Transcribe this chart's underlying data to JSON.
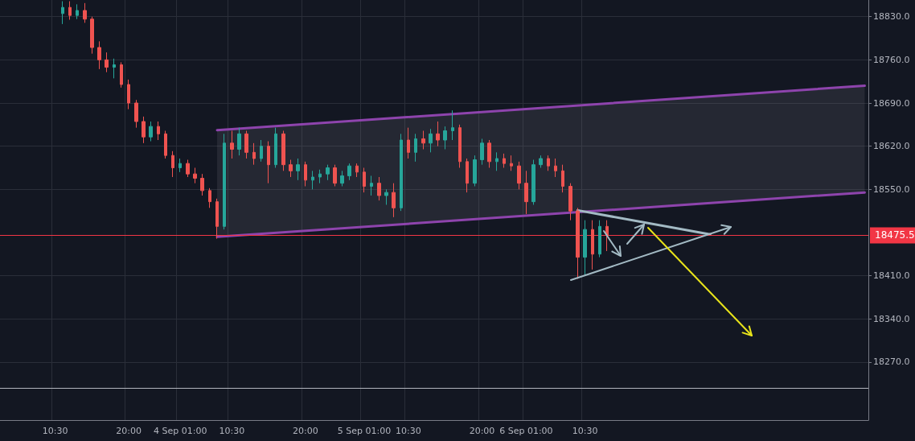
{
  "chart_data": {
    "type": "candlestick",
    "categories": [
      null,
      null,
      null,
      null,
      null,
      null,
      null,
      "10:30",
      null,
      null,
      null,
      null,
      null,
      null,
      null,
      null,
      null,
      "20:00",
      null,
      null,
      null,
      null,
      null,
      null,
      "4 Sep 01:00",
      null,
      null,
      null,
      null,
      null,
      null,
      "10:30",
      null,
      null,
      null,
      null,
      null,
      null,
      null,
      null,
      null,
      "20:00",
      null,
      null,
      null,
      null,
      null,
      null,
      null,
      "5 Sep 01:00",
      null,
      null,
      null,
      null,
      null,
      "10:30",
      null,
      null,
      null,
      null,
      null,
      null,
      null,
      null,
      null,
      "20:00",
      null,
      null,
      null,
      null,
      null,
      "6 Sep 01:00",
      null,
      null,
      null,
      null,
      null,
      null,
      null,
      "10:30",
      null,
      null,
      null,
      null,
      null,
      null,
      null,
      null,
      null,
      null,
      null,
      null,
      null,
      null,
      null,
      null,
      null,
      null,
      null,
      null,
      null,
      null,
      null,
      null,
      null,
      null,
      null,
      null,
      null,
      null,
      null,
      null,
      null,
      null,
      null,
      null,
      null,
      null
    ],
    "ohlc": [
      null,
      null,
      null,
      null,
      null,
      null,
      null,
      null,
      [
        18835,
        18855,
        18818,
        18845
      ],
      [
        18845,
        18855,
        18825,
        18832
      ],
      [
        18832,
        18850,
        18826,
        18840
      ],
      [
        18840,
        18852,
        18820,
        18826
      ],
      [
        18826,
        18830,
        18770,
        18780
      ],
      [
        18780,
        18790,
        18745,
        18760
      ],
      [
        18760,
        18772,
        18740,
        18748
      ],
      [
        18748,
        18762,
        18730,
        18752
      ],
      [
        18752,
        18756,
        18715,
        18720
      ],
      [
        18720,
        18728,
        18680,
        18690
      ],
      [
        18690,
        18695,
        18650,
        18660
      ],
      [
        18660,
        18668,
        18625,
        18635
      ],
      [
        18635,
        18660,
        18628,
        18652
      ],
      [
        18652,
        18660,
        18630,
        18640
      ],
      [
        18640,
        18645,
        18600,
        18605
      ],
      [
        18605,
        18612,
        18570,
        18585
      ],
      [
        18585,
        18600,
        18578,
        18592
      ],
      [
        18592,
        18598,
        18570,
        18575
      ],
      [
        18575,
        18585,
        18560,
        18568
      ],
      [
        18568,
        18575,
        18540,
        18548
      ],
      [
        18548,
        18552,
        18520,
        18530
      ],
      [
        18530,
        18535,
        18470,
        18490
      ],
      [
        18490,
        18640,
        18485,
        18625
      ],
      [
        18625,
        18645,
        18600,
        18615
      ],
      [
        18615,
        18650,
        18605,
        18640
      ],
      [
        18640,
        18645,
        18600,
        18610
      ],
      [
        18610,
        18625,
        18590,
        18600
      ],
      [
        18600,
        18630,
        18595,
        18620
      ],
      [
        18620,
        18628,
        18560,
        18590
      ],
      [
        18590,
        18650,
        18585,
        18640
      ],
      [
        18640,
        18645,
        18580,
        18590
      ],
      [
        18590,
        18598,
        18570,
        18580
      ],
      [
        18580,
        18600,
        18565,
        18590
      ],
      [
        18590,
        18595,
        18555,
        18565
      ],
      [
        18565,
        18580,
        18550,
        18570
      ],
      [
        18570,
        18582,
        18560,
        18575
      ],
      [
        18575,
        18590,
        18565,
        18585
      ],
      [
        18585,
        18590,
        18555,
        18560
      ],
      [
        18560,
        18580,
        18555,
        18572
      ],
      [
        18572,
        18592,
        18565,
        18588
      ],
      [
        18588,
        18592,
        18570,
        18578
      ],
      [
        18578,
        18585,
        18545,
        18555
      ],
      [
        18555,
        18572,
        18540,
        18560
      ],
      [
        18560,
        18570,
        18532,
        18540
      ],
      [
        18540,
        18550,
        18525,
        18545
      ],
      [
        18545,
        18560,
        18505,
        18520
      ],
      [
        18520,
        18640,
        18515,
        18630
      ],
      [
        18630,
        18650,
        18600,
        18610
      ],
      [
        18610,
        18640,
        18595,
        18632
      ],
      [
        18632,
        18645,
        18615,
        18625
      ],
      [
        18625,
        18648,
        18610,
        18640
      ],
      [
        18640,
        18660,
        18620,
        18630
      ],
      [
        18630,
        18652,
        18615,
        18645
      ],
      [
        18645,
        18678,
        18630,
        18650
      ],
      [
        18650,
        18655,
        18585,
        18595
      ],
      [
        18595,
        18600,
        18545,
        18560
      ],
      [
        18560,
        18605,
        18555,
        18598
      ],
      [
        18598,
        18632,
        18590,
        18625
      ],
      [
        18625,
        18630,
        18585,
        18595
      ],
      [
        18595,
        18610,
        18580,
        18600
      ],
      [
        18600,
        18608,
        18585,
        18592
      ],
      [
        18592,
        18605,
        18580,
        18588
      ],
      [
        18588,
        18595,
        18550,
        18560
      ],
      [
        18560,
        18580,
        18510,
        18530
      ],
      [
        18530,
        18598,
        18525,
        18590
      ],
      [
        18590,
        18605,
        18585,
        18600
      ],
      [
        18600,
        18605,
        18580,
        18588
      ],
      [
        18588,
        18600,
        18570,
        18580
      ],
      [
        18580,
        18590,
        18545,
        18555
      ],
      [
        18555,
        18560,
        18500,
        18515
      ],
      [
        18515,
        18520,
        18405,
        18440
      ],
      [
        18440,
        18500,
        18410,
        18485
      ],
      [
        18485,
        18500,
        18420,
        18445
      ],
      [
        18445,
        18500,
        18440,
        18490
      ],
      [
        18490,
        18500,
        18450,
        18475.5
      ],
      null,
      null,
      null,
      null,
      null,
      null,
      null,
      null,
      null,
      null,
      null,
      null,
      null,
      null,
      null,
      null,
      null,
      null,
      null,
      null,
      null,
      null,
      null,
      null,
      null,
      null,
      null,
      null,
      null,
      null,
      null,
      null,
      null,
      null,
      null
    ],
    "colors": [
      null,
      null,
      null,
      null,
      null,
      null,
      null,
      null,
      "#26a69a",
      "#ef5350",
      "#26a69a",
      "#ef5350",
      "#ef5350",
      "#ef5350",
      "#ef5350",
      "#26a69a",
      "#ef5350",
      "#ef5350",
      "#ef5350",
      "#ef5350",
      "#26a69a",
      "#ef5350",
      "#ef5350",
      "#ef5350",
      "#26a69a",
      "#ef5350",
      "#ef5350",
      "#ef5350",
      "#ef5350",
      "#ef5350",
      "#26a69a",
      "#ef5350",
      "#26a69a",
      "#ef5350",
      "#ef5350",
      "#26a69a",
      "#ef5350",
      "#26a69a",
      "#ef5350",
      "#ef5350",
      "#26a69a",
      "#ef5350",
      "#26a69a",
      "#26a69a",
      "#26a69a",
      "#ef5350",
      "#26a69a",
      "#26a69a",
      "#ef5350",
      "#ef5350",
      "#26a69a",
      "#ef5350",
      "#26a69a",
      "#ef5350",
      "#26a69a",
      "#ef5350",
      "#26a69a",
      "#ef5350",
      "#26a69a",
      "#ef5350",
      "#26a69a",
      "#26a69a",
      "#ef5350",
      "#ef5350",
      "#26a69a",
      "#26a69a",
      "#ef5350",
      "#26a69a",
      "#ef5350",
      "#ef5350",
      "#ef5350",
      "#ef5350",
      "#26a69a",
      "#26a69a",
      "#ef5350",
      "#ef5350",
      "#ef5350",
      "#ef5350",
      "#ef5350",
      "#26a69a",
      "#ef5350",
      "#26a69a",
      "#ef5350",
      null,
      null,
      null,
      null,
      null,
      null,
      null,
      null,
      null,
      null,
      null,
      null,
      null,
      null,
      null,
      null,
      null,
      null,
      null,
      null,
      null,
      null,
      null,
      null,
      null,
      null,
      null,
      null,
      null,
      null,
      null,
      null,
      null,
      null,
      null
    ],
    "series": [
      {
        "type": "line",
        "color": "#8e44ad",
        "values": [
          null,
          null,
          null,
          null,
          null,
          null,
          null,
          null,
          null,
          null,
          null,
          null,
          null,
          null,
          null,
          null,
          null,
          null,
          null,
          null,
          null,
          null,
          null,
          null,
          null,
          null,
          null,
          null,
          null,
          18646,
          null,
          null,
          null,
          null,
          null,
          null,
          null,
          null,
          null,
          null,
          null,
          null,
          null,
          null,
          null,
          null,
          null,
          null,
          null,
          null,
          null,
          null,
          null,
          null,
          null,
          null,
          null,
          null,
          null,
          null,
          null,
          null,
          null,
          null,
          null,
          null,
          null,
          null,
          null,
          null,
          null,
          null,
          null,
          null,
          null,
          null,
          null,
          null,
          null,
          null,
          null,
          null,
          null,
          null,
          null,
          null,
          null,
          null,
          null,
          null,
          null,
          null,
          null,
          null,
          null,
          null,
          null,
          null,
          null,
          null,
          null,
          null,
          null,
          null,
          null,
          null,
          null,
          null,
          null,
          null,
          null,
          null,
          null,
          null,
          null,
          null,
          null,
          18718
        ],
        "lower": [
          null,
          null,
          null,
          null,
          null,
          null,
          null,
          null,
          null,
          null,
          null,
          null,
          null,
          null,
          null,
          null,
          null,
          null,
          null,
          null,
          null,
          null,
          null,
          null,
          null,
          null,
          null,
          null,
          null,
          18473,
          null,
          null,
          null,
          null,
          null,
          null,
          null,
          null,
          null,
          null,
          null,
          null,
          null,
          null,
          null,
          null,
          null,
          null,
          null,
          null,
          null,
          null,
          null,
          null,
          null,
          null,
          null,
          null,
          null,
          null,
          null,
          null,
          null,
          null,
          null,
          null,
          null,
          null,
          null,
          null,
          null,
          null,
          null,
          null,
          null,
          null,
          null,
          null,
          null,
          null,
          null,
          null,
          null,
          null,
          null,
          null,
          null,
          null,
          null,
          null,
          null,
          null,
          null,
          null,
          null,
          null,
          null,
          null,
          null,
          null,
          null,
          null,
          null,
          null,
          null,
          null,
          null,
          null,
          null,
          null,
          null,
          null,
          null,
          null,
          null,
          null,
          null,
          18545
        ],
        "upper": [
          null,
          null,
          null,
          null,
          null,
          null,
          null,
          null,
          null,
          null,
          null,
          null,
          null,
          null,
          null,
          null,
          null,
          null,
          null,
          null,
          null,
          null,
          null,
          null,
          null,
          null,
          null,
          null,
          null,
          18646,
          null,
          null,
          null,
          null,
          null,
          null,
          null,
          null,
          null,
          null,
          null,
          null,
          null,
          null,
          null,
          null,
          null,
          null,
          null,
          null,
          null,
          null,
          null,
          null,
          null,
          null,
          null,
          null,
          null,
          null,
          null,
          null,
          null,
          null,
          null,
          null,
          null,
          null,
          null,
          null,
          null,
          null,
          null,
          null,
          null,
          null,
          null,
          null,
          null,
          null,
          null,
          null,
          null,
          null,
          null,
          null,
          null,
          null,
          null,
          null,
          null,
          null,
          null,
          null,
          null,
          null,
          null,
          null,
          null,
          null,
          null,
          null,
          null,
          null,
          null,
          null,
          null,
          null,
          null,
          null,
          null,
          null,
          null,
          null,
          null,
          null,
          null,
          18718
        ]
      },
      {
        "type": "line",
        "color": "#8e44ad",
        "values": [
          null,
          null,
          null,
          null,
          null,
          null,
          null,
          null,
          null,
          null,
          null,
          null,
          null,
          null,
          null,
          null,
          null,
          null,
          null,
          null,
          null,
          null,
          null,
          null,
          null,
          null,
          null,
          null,
          null,
          18473,
          null,
          null,
          null,
          null,
          null,
          null,
          null,
          null,
          null,
          null,
          null,
          null,
          null,
          null,
          null,
          null,
          null,
          null,
          null,
          null,
          null,
          null,
          null,
          null,
          null,
          null,
          null,
          null,
          null,
          null,
          null,
          null,
          null,
          null,
          null,
          null,
          null,
          null,
          null,
          null,
          null,
          null,
          null,
          null,
          null,
          null,
          null,
          null,
          null,
          null,
          null,
          null,
          null,
          null,
          null,
          null,
          null,
          null,
          null,
          null,
          null,
          null,
          null,
          null,
          null,
          null,
          null,
          null,
          null,
          null,
          null,
          null,
          null,
          null,
          null,
          null,
          null,
          null,
          null,
          null,
          null,
          null,
          null,
          null,
          null,
          null,
          null,
          18545
        ]
      },
      {
        "type": "line",
        "color": "#a3bac4",
        "values": [
          null,
          null,
          null,
          null,
          null,
          null,
          null,
          null,
          null,
          null,
          null,
          null,
          null,
          null,
          null,
          null,
          null,
          null,
          null,
          null,
          null,
          null,
          null,
          null,
          null,
          null,
          null,
          null,
          null,
          null,
          null,
          null,
          null,
          null,
          null,
          null,
          null,
          null,
          null,
          null,
          null,
          null,
          null,
          null,
          null,
          null,
          null,
          null,
          null,
          null,
          null,
          null,
          null,
          null,
          null,
          null,
          null,
          null,
          null,
          null,
          null,
          null,
          null,
          null,
          null,
          null,
          null,
          null,
          null,
          null,
          null,
          null,
          null,
          null,
          null,
          null,
          null,
          null,
          18516,
          null,
          null,
          null,
          null,
          null,
          null,
          null,
          null,
          null,
          null,
          null,
          null,
          null,
          null,
          null,
          null,
          null,
          18477,
          null,
          null,
          null,
          null,
          null,
          null,
          null,
          null,
          null,
          null,
          null,
          null,
          null,
          null,
          null,
          null,
          null,
          null,
          null,
          null,
          null
        ]
      }
    ],
    "ref_lines": [
      {
        "axis": "y",
        "value": 18475.5,
        "label": "18475.5",
        "color": "#f23645"
      },
      {
        "axis": "y",
        "value": 18228,
        "color": "#b2b5be"
      }
    ],
    "ylim": [
      18176,
      18857
    ],
    "yticks": [
      {
        "value": 18270,
        "label": "18270.0"
      },
      {
        "value": 18340,
        "label": "18340.0"
      },
      {
        "value": 18410,
        "label": "18410.0"
      },
      {
        "value": 18550,
        "label": "18550.0"
      },
      {
        "value": 18620,
        "label": "18620.0"
      },
      {
        "value": 18690,
        "label": "18690.0"
      },
      {
        "value": 18760,
        "label": "18760.0"
      },
      {
        "value": 18830,
        "label": "18830.0"
      }
    ],
    "grid": true
  }
}
